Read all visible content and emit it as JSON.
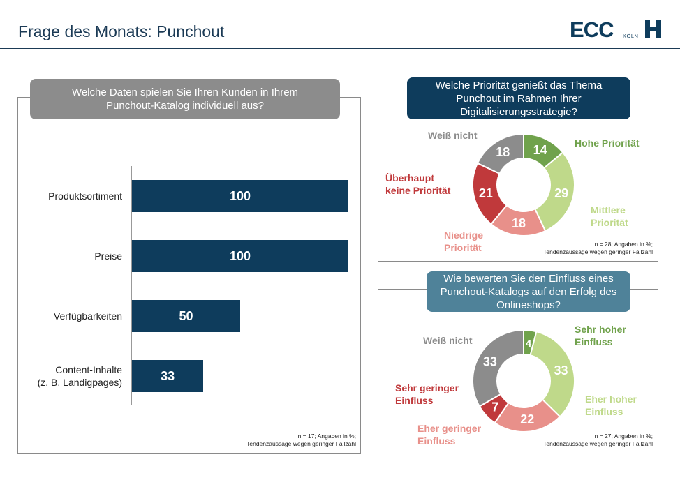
{
  "header": {
    "title": "Frage des Monats: Punchout",
    "logo_text": "ECC",
    "logo_sub": "KÖLN"
  },
  "colors": {
    "navy": "#0e3c5c",
    "gray": "#8c8c8c",
    "teal": "#4f8299",
    "dark_green": "#70a24c",
    "light_green": "#bfd98a",
    "pink": "#e8908a",
    "red": "#c0393b"
  },
  "chart_data": [
    {
      "type": "bar",
      "title": "Welche Daten spielen Sie Ihren Kunden in Ihrem Punchout-Katalog individuell aus?",
      "categories": [
        "Produktsortiment",
        "Preise",
        "Verfügbarkeiten",
        "Content-Inhalte (z. B. Landigpages)"
      ],
      "values": [
        100,
        100,
        50,
        33
      ],
      "xlim": [
        0,
        100
      ],
      "note": [
        "n = 17; Angaben in %;",
        "Tendenzaussage  wegen geringer Fallzahl"
      ]
    },
    {
      "type": "pie",
      "title": "Welche Priorität genießt das Thema Punchout im Rahmen Ihrer Digitalisierungsstrategie?",
      "labels": [
        "Hohe Priorität",
        "Mittlere Priorität",
        "Niedrige Priorität",
        "Überhaupt keine Priorität",
        "Weiß nicht"
      ],
      "values": [
        14,
        29,
        18,
        21,
        18
      ],
      "note": [
        "n = 28; Angaben in %;",
        "Tendenzaussage  wegen geringer Fallzahl"
      ]
    },
    {
      "type": "pie",
      "title": "Wie bewerten Sie den Einfluss eines Punchout-Katalogs auf den Erfolg des Onlineshops?",
      "labels": [
        "Sehr hoher Einfluss",
        "Eher hoher Einfluss",
        "Eher geringer Einfluss",
        "Sehr geringer Einfluss",
        "Weiß nicht"
      ],
      "values": [
        4,
        33,
        22,
        7,
        33
      ],
      "note": [
        "n = 27; Angaben in %;",
        "Tendenzaussage  wegen geringer Fallzahl"
      ]
    }
  ],
  "labels": {
    "cat3_line1": "Content-Inhalte",
    "cat3_line2": "(z. B. Landigpages)",
    "d1": {
      "hohe": "Hohe Priorität",
      "mittlere_1": "Mittlere",
      "mittlere_2": "Priorität",
      "niedrige_1": "Niedrige",
      "niedrige_2": "Priorität",
      "keine_1": "Überhaupt",
      "keine_2": "keine Priorität",
      "weiss": "Weiß nicht"
    },
    "d2": {
      "sehr_hoch_1": "Sehr hoher",
      "sehr_hoch_2": "Einfluss",
      "eher_hoch_1": "Eher hoher",
      "eher_hoch_2": "Einfluss",
      "eher_gering_1": "Eher geringer",
      "eher_gering_2": "Einfluss",
      "sehr_gering_1": "Sehr geringer",
      "sehr_gering_2": "Einfluss",
      "weiss": "Weiß nicht"
    }
  }
}
